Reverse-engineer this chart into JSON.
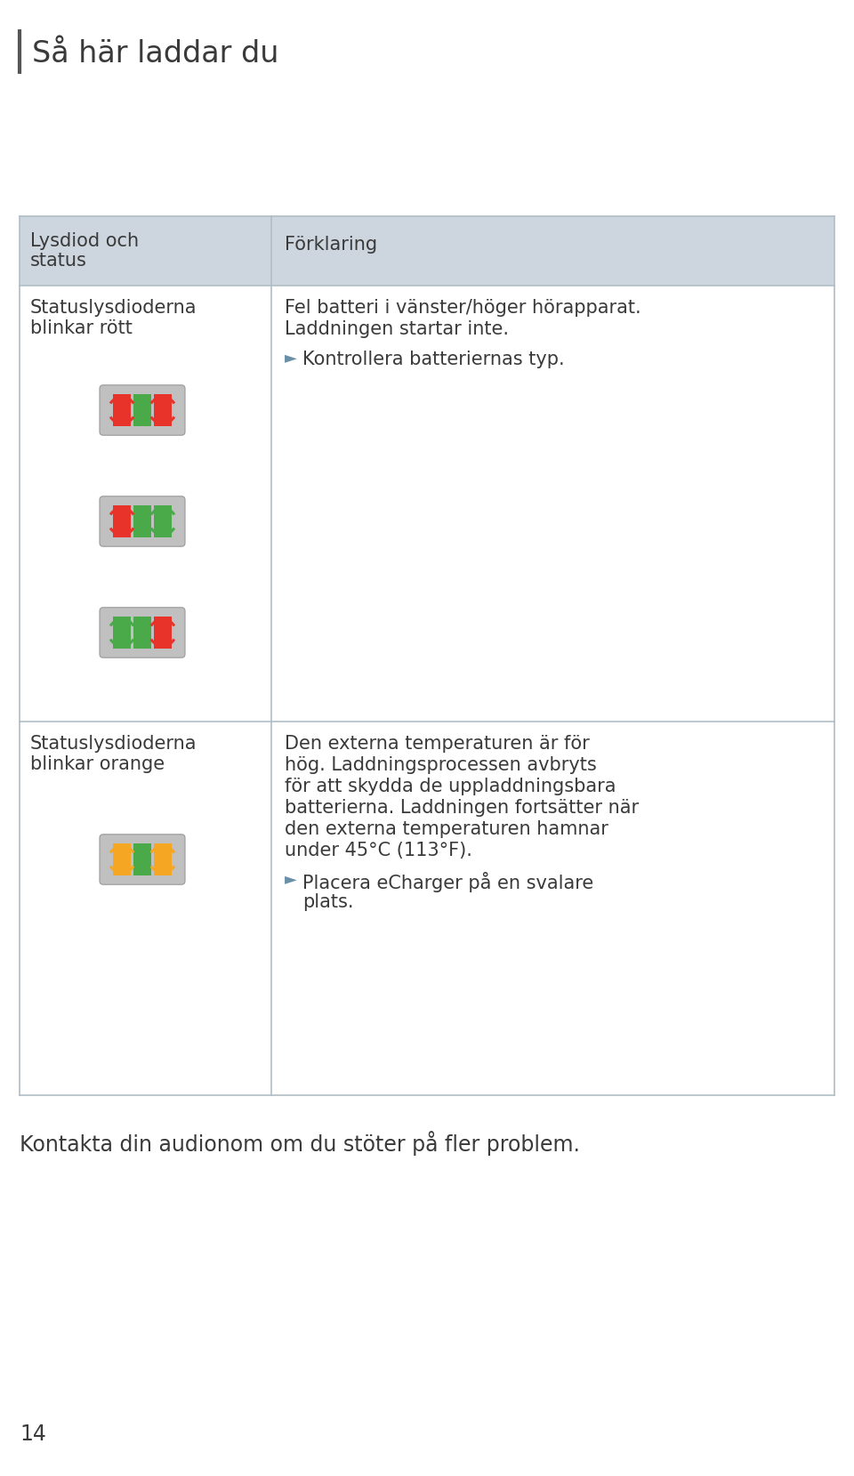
{
  "title": "Så här laddar du",
  "header_bg": "#cdd5de",
  "text_color": "#3a3a3a",
  "col1_header": "Lysdiod och\nstatus",
  "col2_header": "Förklaring",
  "row1_col1_line1": "Statuslysdioderna",
  "row1_col1_line2": "blinkar rött",
  "row1_col2_lines": [
    "Fel batteri i vänster/höger hörapparat.",
    "Laddningen startar inte.",
    "",
    "►  Kontrollera batteriernas typ."
  ],
  "row2_col1_line1": "Statuslysdioderna",
  "row2_col1_line2": "blinkar orange",
  "row2_col2_lines": [
    "Den externa temperaturen är för",
    "hög. Laddningsprocessen avbryts",
    "för att skydda de uppladdningsbara",
    "batterierna. Laddningen fortsätter när",
    "den externa temperaturen hamnar",
    "under 45°C (113°F).",
    "",
    "►  Placera eCharger på en svalare",
    "    plats."
  ],
  "footer_text": "Kontakta din audionom om du stöter på fler problem.",
  "page_num": "14",
  "red_color": "#e8332a",
  "orange_color": "#f5a623",
  "green_color": "#4aaa4a",
  "gray_tray": "#c0c0c0",
  "border_color": "#b0bec5",
  "arrow_color": "#6a8fa8"
}
